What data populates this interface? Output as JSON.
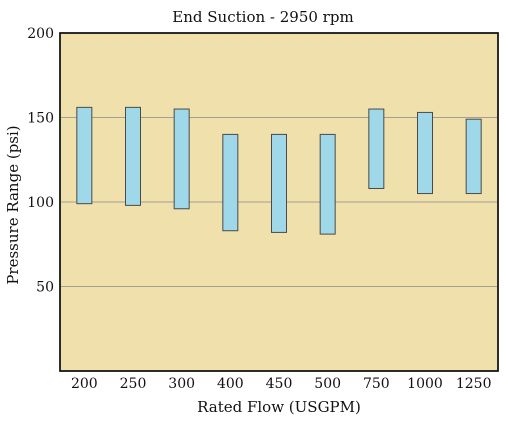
{
  "chart_data": {
    "type": "bar",
    "subtype": "floating-range",
    "title": "End Suction - 2950 rpm",
    "xlabel": "Rated Flow (USGPM)",
    "ylabel": "Pressure Range (psi)",
    "ylim": [
      0,
      200
    ],
    "yticks": [
      50,
      100,
      150,
      200
    ],
    "grid": "horizontal",
    "categories": [
      "200",
      "250",
      "300",
      "400",
      "450",
      "500",
      "750",
      "1000",
      "1250"
    ],
    "series": [
      {
        "low": [
          99,
          98,
          96,
          83,
          82,
          81,
          108,
          105,
          105
        ],
        "high": [
          156,
          156,
          155,
          140,
          140,
          140,
          155,
          153,
          149
        ]
      }
    ],
    "colors": {
      "plot_background": "#f0e0ac",
      "bar_fill": "#9fd8e8",
      "bar_stroke": "#4a4a4a",
      "gridline": "#8a8a8a"
    }
  }
}
